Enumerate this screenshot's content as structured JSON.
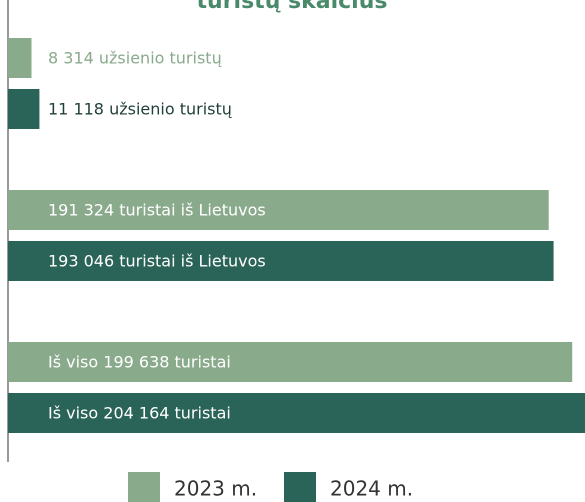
{
  "chart_data": {
    "type": "bar",
    "orientation": "horizontal",
    "title": "turistų skaičius",
    "categories": [
      null,
      null,
      null
    ],
    "series": [
      {
        "name": "2023 m.",
        "color": "#8aaa8c",
        "values": [
          8314,
          191324,
          199638
        ],
        "value_labels": [
          "8 314 užsienio turistų",
          "191 324 turistai iš Lietuvos",
          "Iš viso 199 638 turistai"
        ]
      },
      {
        "name": "2024 m.",
        "color": "#2a6358",
        "values": [
          11118,
          193046,
          204164
        ],
        "value_labels": [
          "11 118 užsienio turistų",
          "193 046 turistai iš Lietuvos",
          "Iš viso 204 164 turistai"
        ]
      }
    ],
    "legend": "bottom"
  }
}
